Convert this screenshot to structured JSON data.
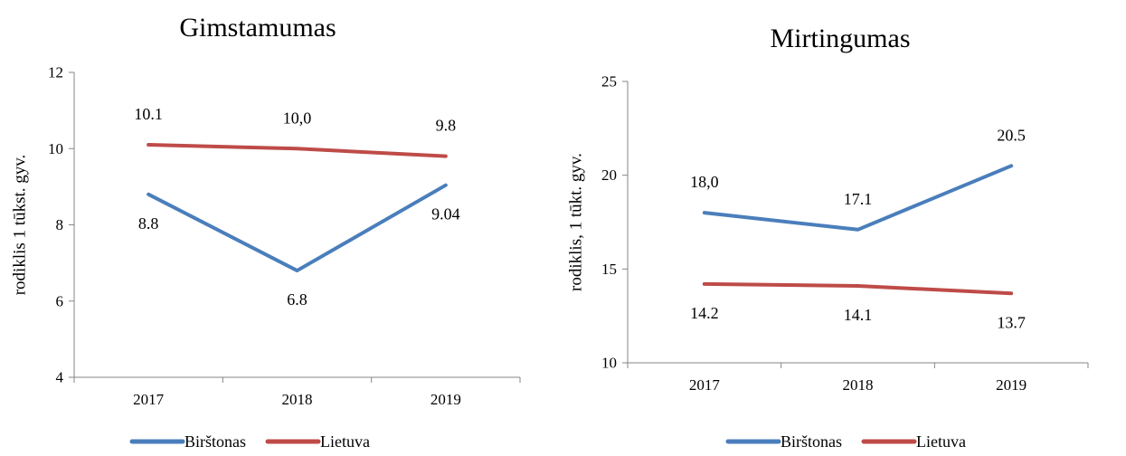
{
  "colors": {
    "birstonas": "#4a7ebb",
    "lietuva": "#be4b48"
  },
  "chart_data": [
    {
      "type": "line",
      "title": "Gimstamumas",
      "xlabel": "",
      "ylabel": "rodiklis 1 tūkst. gyv.",
      "categories": [
        "2017",
        "2018",
        "2019"
      ],
      "ylim": [
        4,
        12
      ],
      "yticks": [
        "4",
        "6",
        "8",
        "10",
        "12"
      ],
      "series": [
        {
          "name": "Birštonas",
          "values": [
            8.8,
            6.8,
            9.04
          ],
          "labels": [
            "8.8",
            "6.8",
            "9.04"
          ],
          "label_pos": "below"
        },
        {
          "name": "Lietuva",
          "values": [
            10.1,
            10.0,
            9.8
          ],
          "labels": [
            "10.1",
            "10,0",
            "9.8"
          ],
          "label_pos": "above"
        }
      ],
      "legend": "bottom",
      "grid": false
    },
    {
      "type": "line",
      "title": "Mirtingumas",
      "xlabel": "",
      "ylabel": "rodiklis, 1 tūkt. gyv.",
      "categories": [
        "2017",
        "2018",
        "2019"
      ],
      "ylim": [
        10,
        25
      ],
      "yticks": [
        "10",
        "15",
        "20",
        "25"
      ],
      "series": [
        {
          "name": "Birštonas",
          "values": [
            18.0,
            17.1,
            20.5
          ],
          "labels": [
            "18,0",
            "17.1",
            "20.5"
          ],
          "label_pos": "above"
        },
        {
          "name": "Lietuva",
          "values": [
            14.2,
            14.1,
            13.7
          ],
          "labels": [
            "14.2",
            "14.1",
            "13.7"
          ],
          "label_pos": "below"
        }
      ],
      "legend": "bottom",
      "grid": false
    }
  ]
}
